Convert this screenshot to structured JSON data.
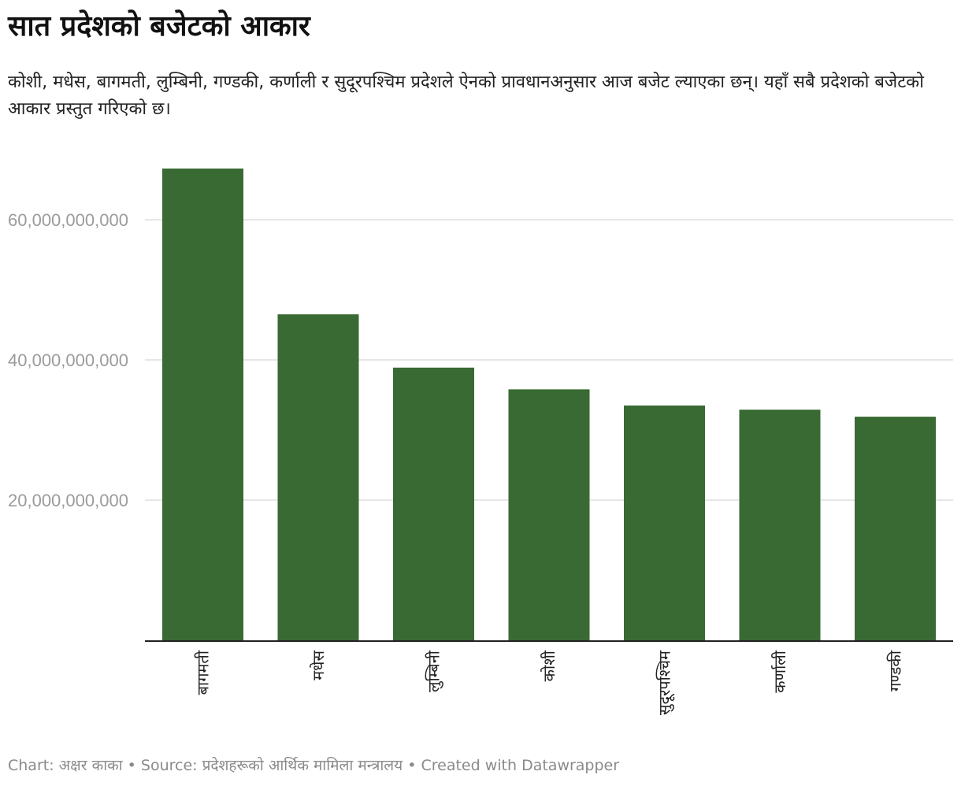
{
  "header": {
    "title": "सात प्रदेशको बजेटको आकार",
    "subtitle": "कोशी, मधेस, बागमती, लुम्बिनी, गण्डकी, कर्णाली र सुदूरपश्चिम प्रदेशले ऐनको प्रावधानअनुसार आज बजेट ल्याएका छन्। यहाँ सबै प्रदेशको बजेटको आकार प्रस्तुत गरिएको छ।"
  },
  "footer": {
    "credit": "Chart: अक्षर काका • Source: प्रदेशहरूको आर्थिक मामिला मन्त्रालय • Created with Datawrapper"
  },
  "colors": {
    "bar": "#3a6a33",
    "gridline": "#dddddd",
    "axis": "#222222",
    "tick_label": "#9b9b9b",
    "category_label": "#222222"
  },
  "chart_data": {
    "type": "bar",
    "title": "सात प्रदेशको बजेटको आकार",
    "subtitle": "कोशी, मधेस, बागमती, लुम्बिनी, गण्डकी, कर्णाली र सुदूरपश्चिम प्रदेशले ऐनको प्रावधानअनुसार आज बजेट ल्याएका छन्। यहाँ सबै प्रदेशको बजेटको आकार प्रस्तुत गरिएको छ।",
    "xlabel": "",
    "ylabel": "",
    "categories": [
      "बागमती",
      "मधेस",
      "लुम्बिनी",
      "कोशी",
      "सुदूरपश्चिम",
      "कर्णाली",
      "गण्डकी"
    ],
    "values": [
      67300000000,
      46500000000,
      38900000000,
      35800000000,
      33500000000,
      32900000000,
      31900000000
    ],
    "ylim": [
      0,
      67300000000
    ],
    "yticks": [
      20000000000,
      40000000000,
      60000000000
    ],
    "ytick_labels": [
      "20,000,000,000",
      "40,000,000,000",
      "60,000,000,000"
    ],
    "grid": true,
    "legend": "none"
  }
}
